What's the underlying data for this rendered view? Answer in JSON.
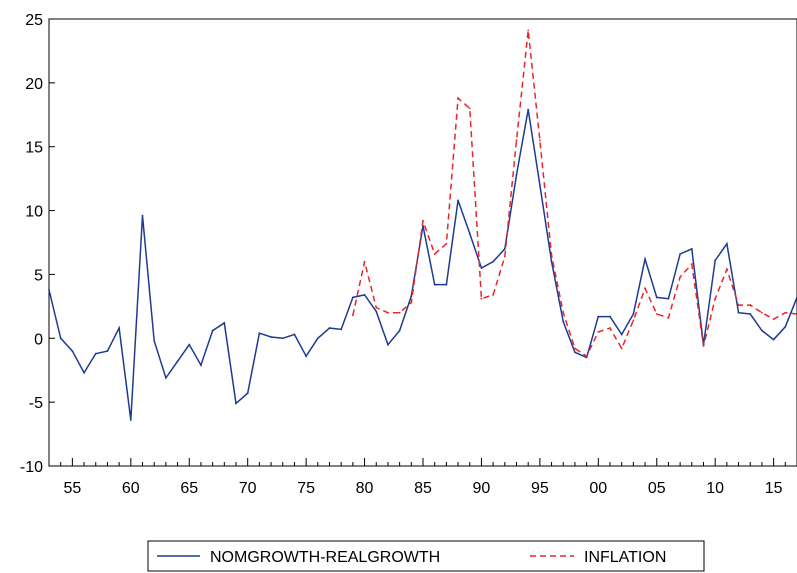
{
  "chart_data": {
    "type": "line",
    "title": "",
    "xlabel": "",
    "ylabel": "",
    "x_start": 1953,
    "x_end": 2017,
    "xlim": [
      1953,
      2017
    ],
    "ylim": [
      -10,
      25
    ],
    "y_ticks": [
      "-10",
      "-5",
      "0",
      "5",
      "10",
      "15",
      "20",
      "25"
    ],
    "x_ticks": [
      {
        "year": 1955,
        "label": "55"
      },
      {
        "year": 1960,
        "label": "60"
      },
      {
        "year": 1965,
        "label": "65"
      },
      {
        "year": 1970,
        "label": "70"
      },
      {
        "year": 1975,
        "label": "75"
      },
      {
        "year": 1980,
        "label": "80"
      },
      {
        "year": 1985,
        "label": "85"
      },
      {
        "year": 1990,
        "label": "90"
      },
      {
        "year": 1995,
        "label": "95"
      },
      {
        "year": 2000,
        "label": "00"
      },
      {
        "year": 2005,
        "label": "05"
      },
      {
        "year": 2010,
        "label": "10"
      },
      {
        "year": 2015,
        "label": "15"
      }
    ],
    "grid": false,
    "legend_position": "bottom-center",
    "series": [
      {
        "name": "NOMGROWTH-REALGROWTH",
        "color": "#1f3a93",
        "style": "solid",
        "start_year": 1953,
        "values": [
          3.8,
          0.0,
          -1.0,
          -2.7,
          -1.2,
          -1.0,
          0.8,
          -6.4,
          9.6,
          -0.2,
          -3.1,
          -1.8,
          -0.5,
          -2.1,
          0.6,
          1.2,
          -5.1,
          -4.3,
          0.4,
          0.1,
          0.0,
          0.3,
          -1.4,
          0.0,
          0.8,
          0.7,
          3.2,
          3.4,
          2.1,
          -0.5,
          0.6,
          3.3,
          8.8,
          4.2,
          4.2,
          10.8,
          8.2,
          5.5,
          6.0,
          7.0,
          12.8,
          17.9,
          12.0,
          6.0,
          1.3,
          -1.1,
          -1.5,
          1.7,
          1.7,
          0.3,
          1.9,
          6.2,
          3.2,
          3.1,
          6.6,
          7.0,
          -0.5,
          6.1,
          7.4,
          2.0,
          1.9,
          0.6,
          -0.1,
          0.9,
          3.2
        ]
      },
      {
        "name": "INFLATION",
        "color": "#e8262a",
        "style": "dashed",
        "start_year": 1979,
        "values": [
          1.8,
          6.0,
          2.4,
          2.0,
          2.0,
          2.8,
          9.2,
          6.6,
          7.4,
          18.8,
          18.0,
          3.1,
          3.4,
          6.4,
          15.5,
          24.1,
          15.5,
          6.5,
          2.0,
          -0.8,
          -1.4,
          0.5,
          0.8,
          -0.8,
          1.4,
          3.9,
          1.9,
          1.6,
          4.8,
          5.8,
          -0.6,
          3.1,
          5.4,
          2.6,
          2.6,
          2.0,
          1.5,
          2.0,
          1.9
        ]
      }
    ]
  }
}
